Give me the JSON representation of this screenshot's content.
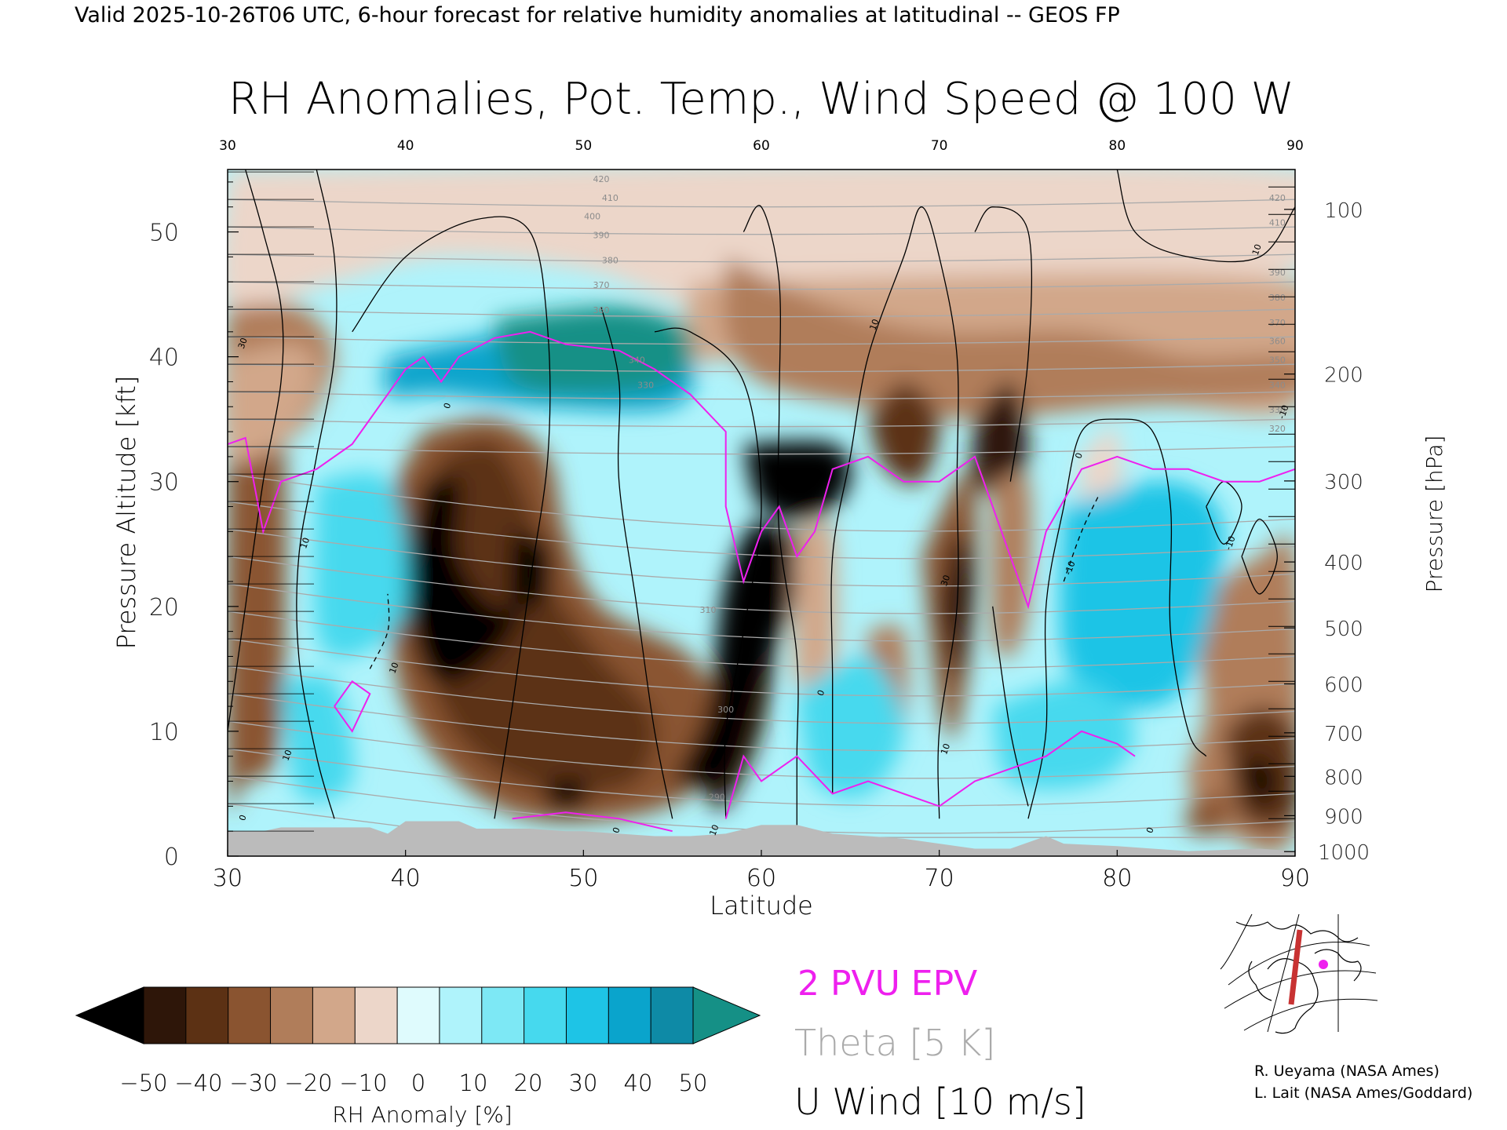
{
  "header": {
    "valid_line": "Valid 2025-10-26T06 UTC, 6-hour forecast for relative humidity anomalies at latitudinal -- GEOS FP",
    "title": "RH Anomalies, Pot. Temp., Wind Speed @ 100 W"
  },
  "chart_data": {
    "type": "heatmap",
    "title": "RH Anomalies, Pot. Temp., Wind Speed @ 100 W",
    "xlabel": "Latitude",
    "ylabel": "Pressure Altitude [kft]",
    "y2label": "Pressure [hPa]",
    "xlim": [
      30,
      90
    ],
    "ylim": [
      0,
      55
    ],
    "x_ticks": [
      "30",
      "40",
      "50",
      "60",
      "70",
      "80",
      "90"
    ],
    "top_x_ticks": [
      "30",
      "40",
      "50",
      "60",
      "70",
      "80",
      "90"
    ],
    "y_ticks": [
      "0",
      "10",
      "20",
      "30",
      "40",
      "50"
    ],
    "pressure_ticks": [
      {
        "label": "100",
        "hpa": 100
      },
      {
        "label": "200",
        "hpa": 200
      },
      {
        "label": "300",
        "hpa": 300
      },
      {
        "label": "400",
        "hpa": 400
      },
      {
        "label": "500",
        "hpa": 500
      },
      {
        "label": "600",
        "hpa": 600
      },
      {
        "label": "700",
        "hpa": 700
      },
      {
        "label": "800",
        "hpa": 800
      },
      {
        "label": "900",
        "hpa": 900
      },
      {
        "label": "1000",
        "hpa": 1000
      }
    ],
    "theta_labels": [
      {
        "text": "420",
        "lat": 51,
        "kft": 54
      },
      {
        "text": "410",
        "lat": 51.5,
        "kft": 52.5
      },
      {
        "text": "400",
        "lat": 50.5,
        "kft": 51
      },
      {
        "text": "390",
        "lat": 51,
        "kft": 49.5
      },
      {
        "text": "380",
        "lat": 51.5,
        "kft": 47.5
      },
      {
        "text": "370",
        "lat": 51,
        "kft": 45.5
      },
      {
        "text": "360",
        "lat": 51,
        "kft": 43.5
      },
      {
        "text": "340",
        "lat": 53,
        "kft": 39.5
      },
      {
        "text": "330",
        "lat": 53.5,
        "kft": 37.5
      },
      {
        "text": "420",
        "lat": 89,
        "kft": 52.5
      },
      {
        "text": "410",
        "lat": 89,
        "kft": 50.5
      },
      {
        "text": "390",
        "lat": 89,
        "kft": 46.5
      },
      {
        "text": "380",
        "lat": 89,
        "kft": 44.5
      },
      {
        "text": "370",
        "lat": 89,
        "kft": 42.5
      },
      {
        "text": "360",
        "lat": 89,
        "kft": 41
      },
      {
        "text": "350",
        "lat": 89,
        "kft": 39.5
      },
      {
        "text": "340",
        "lat": 89,
        "kft": 37.5
      },
      {
        "text": "330",
        "lat": 89,
        "kft": 35.5
      },
      {
        "text": "320",
        "lat": 89,
        "kft": 34
      },
      {
        "text": "310",
        "lat": 57,
        "kft": 19.5
      },
      {
        "text": "300",
        "lat": 58,
        "kft": 11.5
      },
      {
        "text": "290",
        "lat": 57.5,
        "kft": 4.5
      }
    ],
    "wind_labels": [
      {
        "text": "30",
        "lat": 31,
        "kft": 41
      },
      {
        "text": "-10",
        "lat": 89.5,
        "kft": 35.5
      },
      {
        "text": "10",
        "lat": 34.5,
        "kft": 25
      },
      {
        "text": "10",
        "lat": 39.5,
        "kft": 15
      },
      {
        "text": "10",
        "lat": 33.5,
        "kft": 8
      },
      {
        "text": "0",
        "lat": 42.5,
        "kft": 36
      },
      {
        "text": "10",
        "lat": 66.5,
        "kft": 42.5
      },
      {
        "text": "0",
        "lat": 63.5,
        "kft": 13
      },
      {
        "text": "30",
        "lat": 70.5,
        "kft": 22
      },
      {
        "text": "-10",
        "lat": 77.5,
        "kft": 23
      },
      {
        "text": "10",
        "lat": 70.5,
        "kft": 8.5
      },
      {
        "text": "0",
        "lat": 78,
        "kft": 32
      },
      {
        "text": "-10",
        "lat": 86.5,
        "kft": 25
      },
      {
        "text": "10",
        "lat": 88,
        "kft": 48.5
      },
      {
        "text": "10",
        "lat": 57.5,
        "kft": 2
      },
      {
        "text": "0",
        "lat": 31,
        "kft": 3
      },
      {
        "text": "0",
        "lat": 52,
        "kft": 2
      },
      {
        "text": "0",
        "lat": 82,
        "kft": 2
      }
    ],
    "colorbar": {
      "label": "RH Anomaly [%]",
      "tick_labels": [
        "-50",
        "-40",
        "-30",
        "-20",
        "-10",
        "0",
        "10",
        "20",
        "30",
        "40",
        "50"
      ],
      "colors": [
        "#000000",
        "#2e1609",
        "#5c3114",
        "#8a5430",
        "#b07d5a",
        "#d2a78a",
        "#ecd6c9",
        "#dffbfd",
        "#aff3fb",
        "#7de8f5",
        "#46d9ee",
        "#1ec4e6",
        "#0aa4cc",
        "#0e8aa6",
        "#159086"
      ]
    }
  },
  "legend": {
    "epv": "2 PVU EPV",
    "theta": "Theta [5 K]",
    "wind": "U Wind [10 m/s]"
  },
  "colors": {
    "epv": "#ee20ee",
    "theta": "#aaaaaa",
    "wind": "#000000",
    "terrain": "#bbbbbb"
  },
  "credits": {
    "line1": "R. Ueyama (NASA Ames)",
    "line2": "L. Lait (NASA Ames/Goddard)"
  }
}
